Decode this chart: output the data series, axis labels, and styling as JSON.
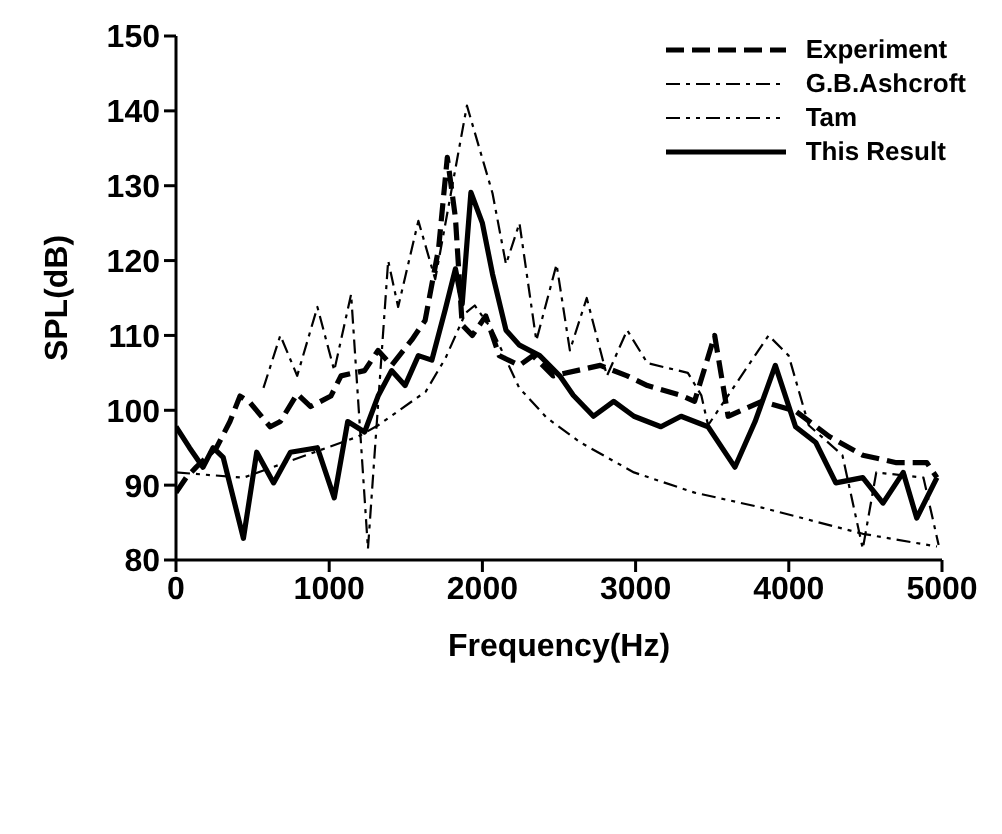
{
  "chart_data": {
    "type": "line",
    "xlabel": "Frequency(Hz)",
    "ylabel": "SPL(dB)",
    "xlim": [
      0,
      5000
    ],
    "xticks": [
      0,
      1000,
      2000,
      3000,
      4000,
      5000
    ],
    "ylim": [
      80,
      150
    ],
    "yticks": [
      80,
      90,
      100,
      110,
      120,
      130,
      140,
      150
    ],
    "grid": false,
    "legend": "top right",
    "marker": "none",
    "series": [
      {
        "name": "Experiment",
        "color": "#000000",
        "line_style": "dashed",
        "x": [
          0,
          66,
          132,
          264,
          352,
          418,
          484,
          615,
          681,
          791,
          879,
          1011,
          1077,
          1231,
          1319,
          1407,
          1539,
          1626,
          1714,
          1771,
          1824,
          1868,
          1934,
          2022,
          2110,
          2242,
          2330,
          2462,
          2769,
          2945,
          3077,
          3297,
          3385,
          3516,
          3604,
          3824,
          4044,
          4264,
          4483,
          4703,
          4901,
          4967
        ],
        "values": [
          89,
          91,
          92.4,
          95,
          98.5,
          101.9,
          101,
          97.8,
          98.5,
          102.2,
          100.5,
          101.9,
          104.6,
          105.3,
          108,
          106,
          109.4,
          112,
          121.6,
          133.8,
          125.7,
          111.4,
          110,
          112.6,
          107.3,
          106,
          107.3,
          104.6,
          106,
          104.6,
          103.3,
          102,
          101.2,
          110,
          99.2,
          101.2,
          99.9,
          96.5,
          94,
          93,
          93,
          91
        ]
      },
      {
        "name": "G.B.Ashcroft",
        "color": "#000000",
        "line_style": "dashdot",
        "x": [
          571,
          681,
          791,
          923,
          1033,
          1143,
          1253,
          1385,
          1450,
          1582,
          1692,
          1899,
          2066,
          2154,
          2242,
          2352,
          2484,
          2571,
          2681,
          2813,
          2945,
          3077,
          3341,
          3429,
          3473,
          3868,
          3999,
          4130,
          4350,
          4483,
          4571,
          4879,
          4978
        ],
        "values": [
          103,
          110,
          104.6,
          113.8,
          105.3,
          115.5,
          81.5,
          120,
          113.8,
          125.3,
          117.5,
          140.7,
          129,
          119.5,
          125,
          109.3,
          119.5,
          108,
          115,
          104.6,
          110.7,
          106.3,
          105,
          102,
          98,
          110,
          107.3,
          98,
          94,
          81.5,
          91.7,
          91,
          82
        ]
      },
      {
        "name": "Tam",
        "color": "#000000",
        "line_style": "dashdotdot",
        "x": [
          0,
          440,
          1190,
          1320,
          1630,
          1760,
          1890,
          1950,
          2065,
          2240,
          2420,
          2640,
          2989,
          3385,
          3824,
          4483,
          4967
        ],
        "values": [
          91.7,
          91,
          96.5,
          98,
          102.5,
          107,
          113,
          114,
          110.7,
          103,
          99,
          95.7,
          91.7,
          89,
          87,
          83.5,
          81.8
        ]
      },
      {
        "name": "This Result",
        "color": "#000000",
        "line_style": "solid",
        "x": [
          0,
          88,
          176,
          242,
          308,
          440,
          527,
          637,
          747,
          923,
          1033,
          1121,
          1231,
          1319,
          1407,
          1495,
          1582,
          1670,
          1758,
          1824,
          1868,
          1925,
          2000,
          2066,
          2154,
          2242,
          2374,
          2505,
          2593,
          2725,
          2857,
          2989,
          3165,
          3297,
          3473,
          3648,
          3780,
          3912,
          4044,
          4176,
          4307,
          4483,
          4615,
          4747,
          4835,
          4967
        ],
        "values": [
          97.8,
          95,
          92.4,
          95,
          93.7,
          82.9,
          94.4,
          90.3,
          94.4,
          95,
          88.3,
          98.5,
          97.1,
          101.9,
          105.3,
          103.3,
          107.3,
          106.7,
          113.5,
          118.9,
          114.2,
          129.1,
          125,
          118.2,
          110.7,
          108.7,
          107.3,
          104.6,
          102,
          99.2,
          101.2,
          99.2,
          97.8,
          99.2,
          97.8,
          92.4,
          98.5,
          106,
          97.8,
          95.7,
          90.3,
          91,
          87.6,
          91.7,
          85.6,
          91
        ]
      }
    ]
  }
}
